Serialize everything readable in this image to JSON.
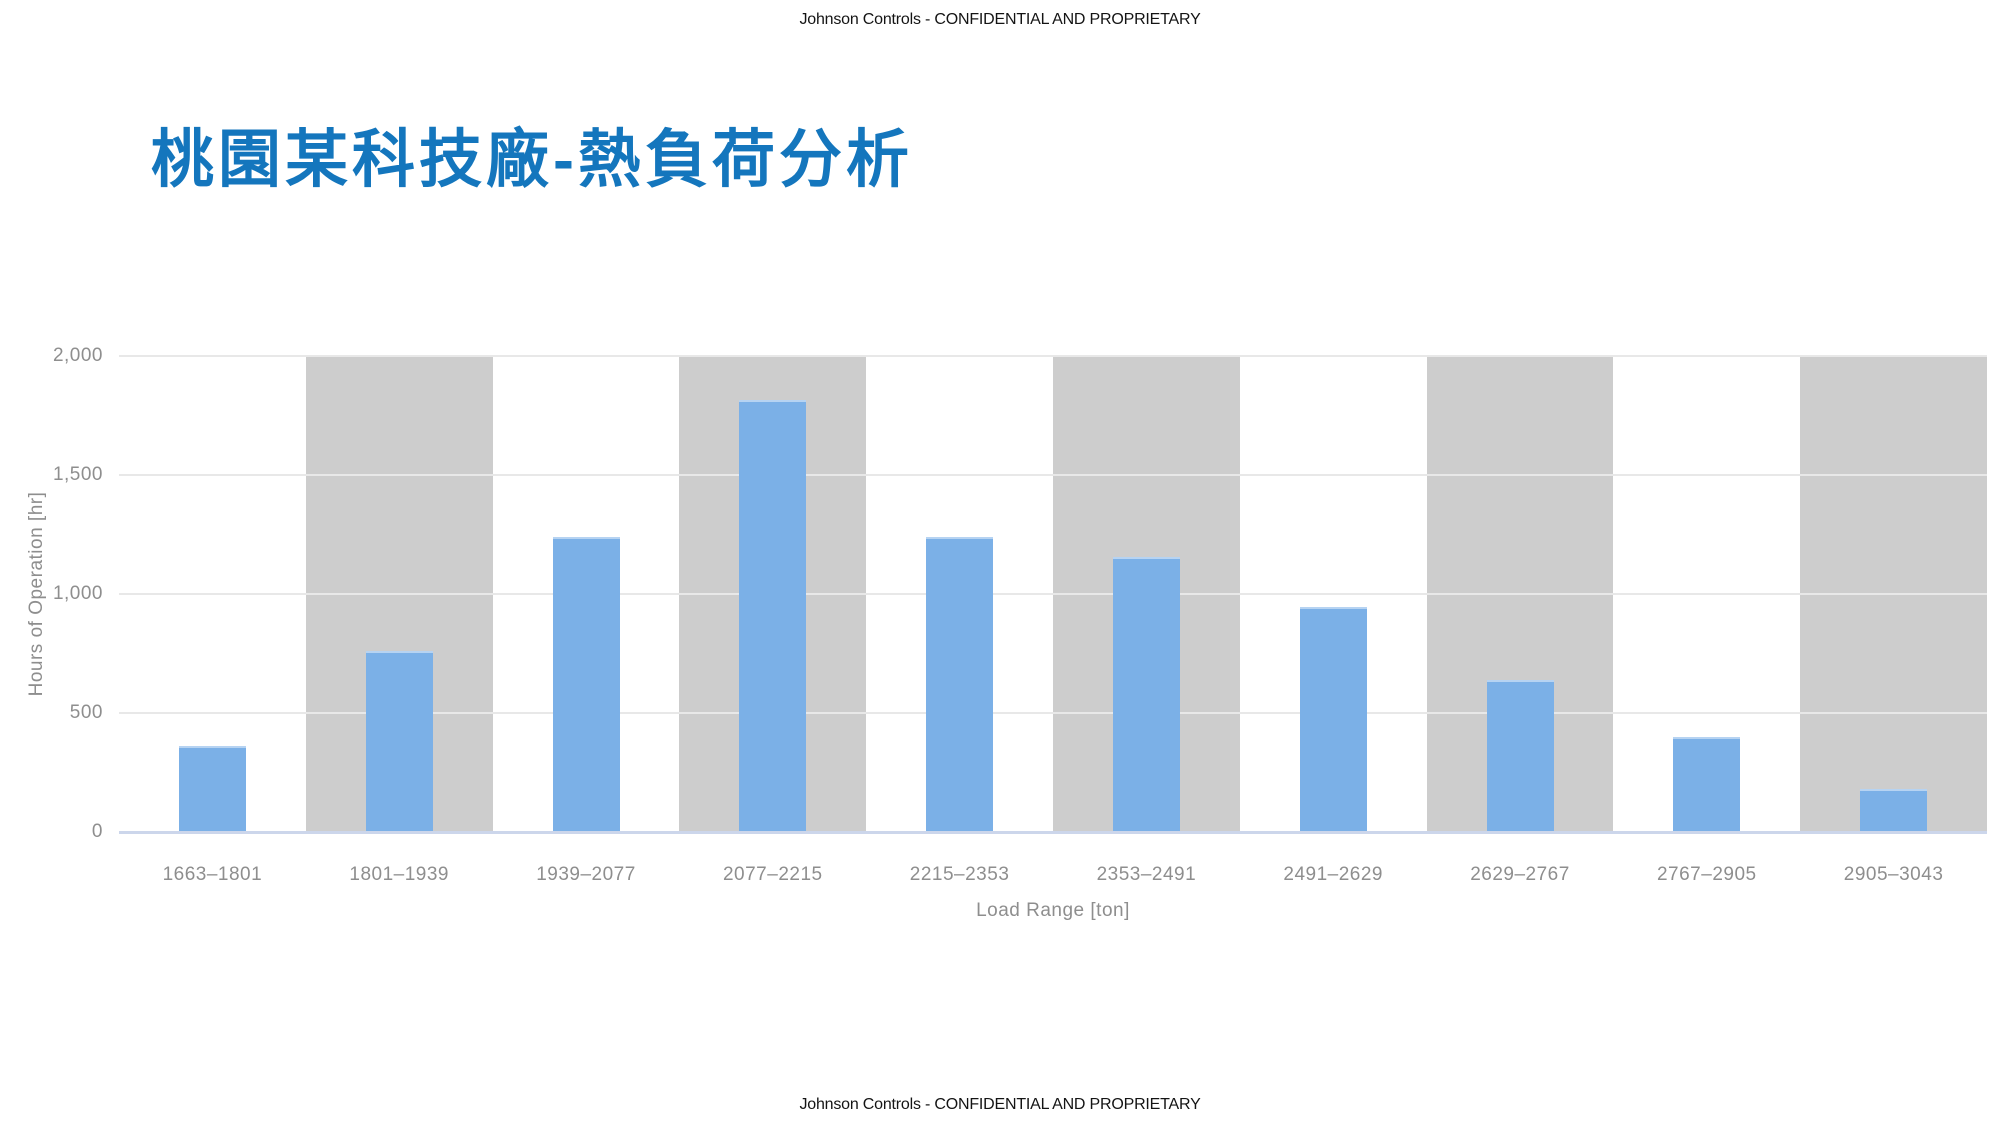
{
  "header": {
    "text": "Johnson Controls - CONFIDENTIAL AND PROPRIETARY"
  },
  "footer": {
    "text": "Johnson Controls - CONFIDENTIAL AND PROPRIETARY"
  },
  "title": {
    "text": "桃園某科技廠-熱負荷分析",
    "color": "#1476BD"
  },
  "chart_data": {
    "type": "bar",
    "title": "",
    "categories": [
      "1663–1801",
      "1801–1939",
      "1939–2077",
      "2077–2215",
      "2215–2353",
      "2353–2491",
      "2491–2629",
      "2629–2767",
      "2767–2905",
      "2905–3043"
    ],
    "values": [
      360,
      760,
      1240,
      1815,
      1240,
      1155,
      945,
      640,
      400,
      180
    ],
    "xlabel": "Load Range [ton]",
    "ylabel": "Hours of Operation [hr]",
    "ylim": [
      0,
      2000
    ],
    "ytick_labels": [
      "0",
      "500",
      "1,000",
      "1,500",
      "2,000"
    ],
    "grid": true,
    "legend": "none",
    "shaded_band_categories": "every second category (2nd, 4th, 6th, 8th, 10th)",
    "colors": {
      "bar": "#7bb0e7",
      "band": "#cdcdcd",
      "gridline": "#e8e8e8",
      "axis_line": "#ccd6eb",
      "labels": "#8e8e8e"
    }
  }
}
